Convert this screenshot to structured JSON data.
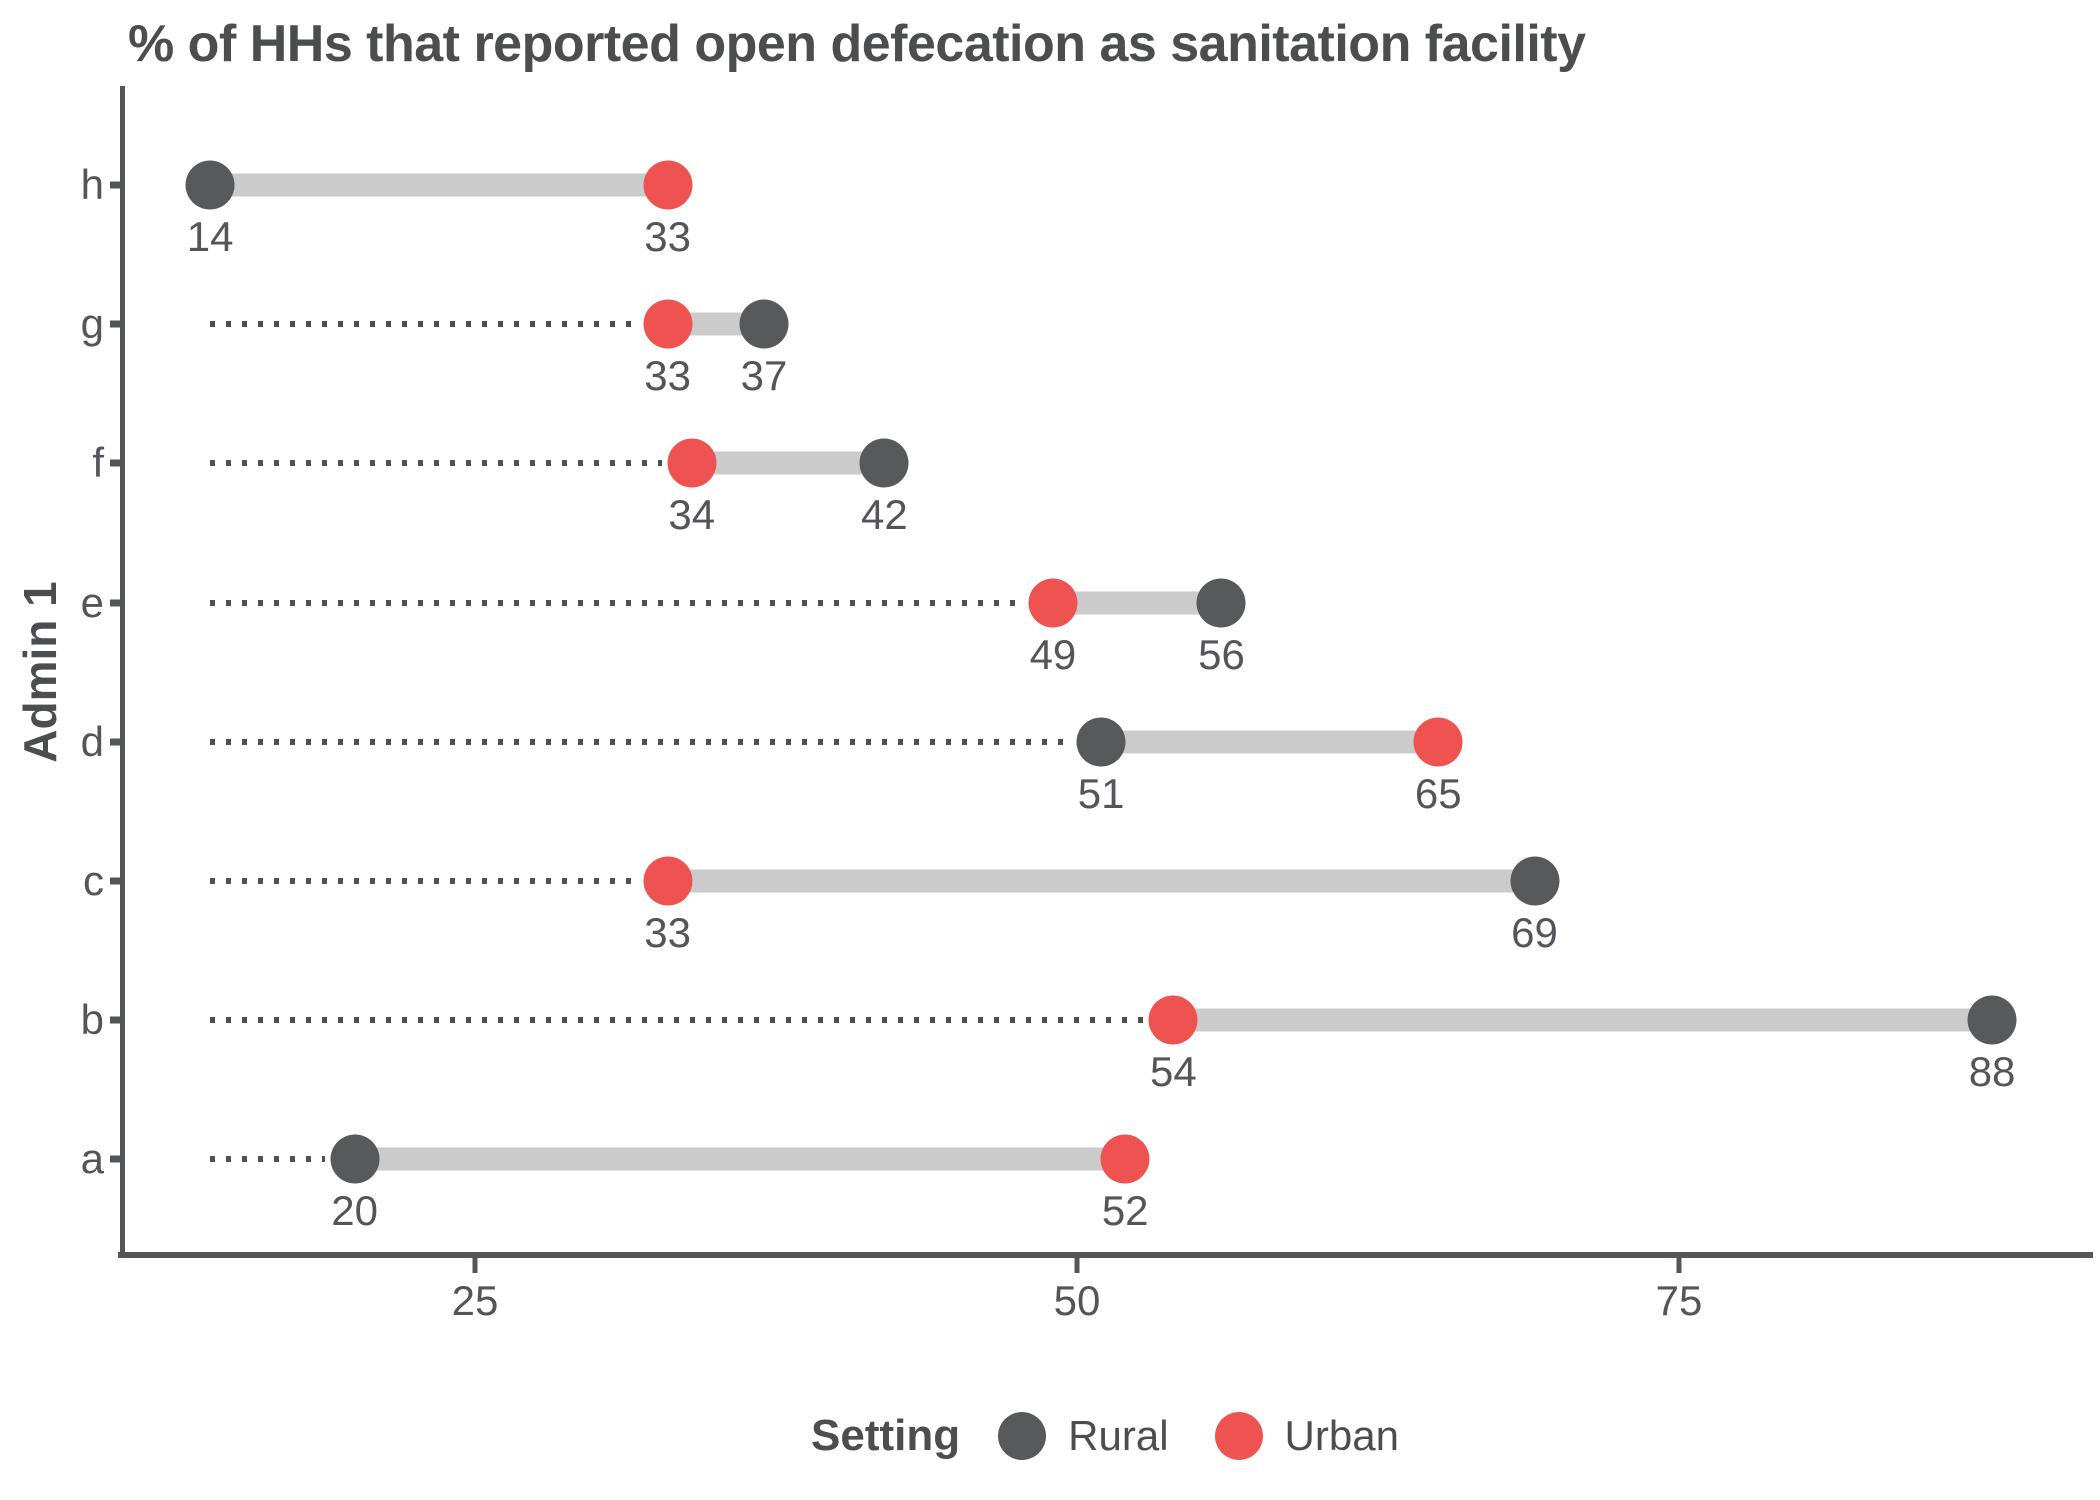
{
  "title": "% of HHs that reported open defecation as sanitation facility",
  "chart_data": {
    "type": "dumbbell",
    "title": "% of HHs that reported open defecation as sanitation facility",
    "xlabel": "",
    "ylabel": "Admin 1",
    "categories": [
      "h",
      "g",
      "f",
      "e",
      "d",
      "c",
      "b",
      "a"
    ],
    "series": [
      {
        "name": "Rural",
        "color": "#58595B",
        "values": [
          14,
          37,
          42,
          56,
          51,
          69,
          88,
          20
        ]
      },
      {
        "name": "Urban",
        "color": "#EF5351",
        "values": [
          33,
          33,
          34,
          49,
          65,
          33,
          54,
          52
        ]
      }
    ],
    "xticks": [
      25,
      50,
      75
    ],
    "xlim": [
      10.34,
      92
    ],
    "grid": false,
    "legend_position": "bottom",
    "legend_title": "Setting",
    "connector_color": "#CBCBCB",
    "leader_line_style": "dotted",
    "value_labels_shown": true
  },
  "colors": {
    "rural": "#58595B",
    "urban": "#EF5351",
    "connector": "#CBCBCB",
    "axis": "#545559",
    "text": "#4C4D4F",
    "background": "#FFFFFF"
  }
}
